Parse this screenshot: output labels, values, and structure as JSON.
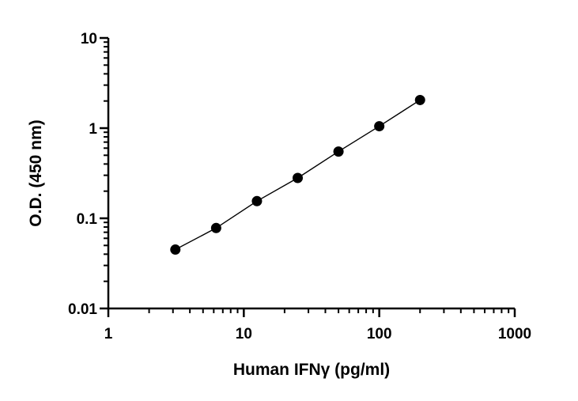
{
  "chart_data": {
    "type": "scatter",
    "xlabel": "Human IFNγ (pg/ml)",
    "ylabel": "O.D. (450 nm)",
    "xscale": "log",
    "yscale": "log",
    "xlim": [
      1,
      1000
    ],
    "ylim": [
      0.01,
      10
    ],
    "x_ticks": [
      1,
      10,
      100,
      1000
    ],
    "x_tick_labels": [
      "1",
      "10",
      "100",
      "1000"
    ],
    "y_ticks": [
      0.01,
      0.1,
      1,
      10
    ],
    "y_tick_labels": [
      "0.01",
      "0.1",
      "1",
      "10"
    ],
    "grid": false,
    "legend": "none",
    "series": [
      {
        "x": [
          3.125,
          6.25,
          12.5,
          25,
          50,
          100,
          200
        ],
        "y": [
          0.045,
          0.078,
          0.155,
          0.28,
          0.55,
          1.05,
          2.05
        ],
        "marker": "circle",
        "fit_line": true,
        "color": "#000000"
      }
    ]
  }
}
